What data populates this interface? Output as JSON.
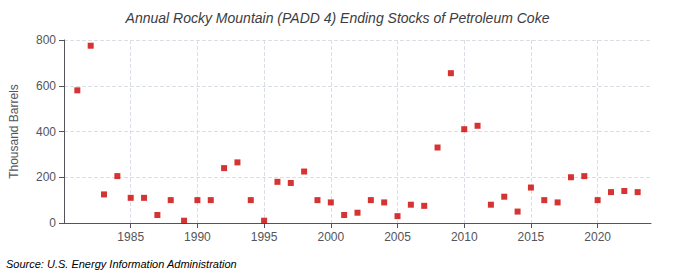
{
  "chart_data": {
    "type": "scatter",
    "title": "Annual Rocky Mountain (PADD 4) Ending Stocks of Petroleum Coke",
    "ylabel": "Thousand Barrels",
    "annotation": "Source: U.S. Energy Information Administration",
    "x": [
      1981,
      1982,
      1983,
      1984,
      1985,
      1986,
      1987,
      1988,
      1989,
      1990,
      1991,
      1992,
      1993,
      1994,
      1995,
      1996,
      1997,
      1998,
      1999,
      2000,
      2001,
      2002,
      2003,
      2004,
      2005,
      2006,
      2007,
      2008,
      2009,
      2010,
      2011,
      2012,
      2013,
      2014,
      2015,
      2016,
      2017,
      2018,
      2019,
      2020,
      2021,
      2022,
      2023
    ],
    "values": [
      580,
      775,
      125,
      205,
      110,
      110,
      35,
      100,
      10,
      100,
      100,
      240,
      265,
      100,
      10,
      180,
      175,
      225,
      100,
      90,
      35,
      45,
      100,
      90,
      30,
      80,
      75,
      330,
      655,
      410,
      425,
      80,
      115,
      50,
      155,
      100,
      90,
      200,
      205,
      100,
      135,
      140,
      135
    ],
    "color": "#cc0000",
    "marker": "square",
    "xlim": [
      1980,
      2024
    ],
    "ylim": [
      0,
      800
    ],
    "xticks": [
      1985,
      1990,
      1995,
      2000,
      2005,
      2010,
      2015,
      2020
    ],
    "yticks": [
      0,
      200,
      400,
      600,
      800
    ],
    "grid": true
  }
}
